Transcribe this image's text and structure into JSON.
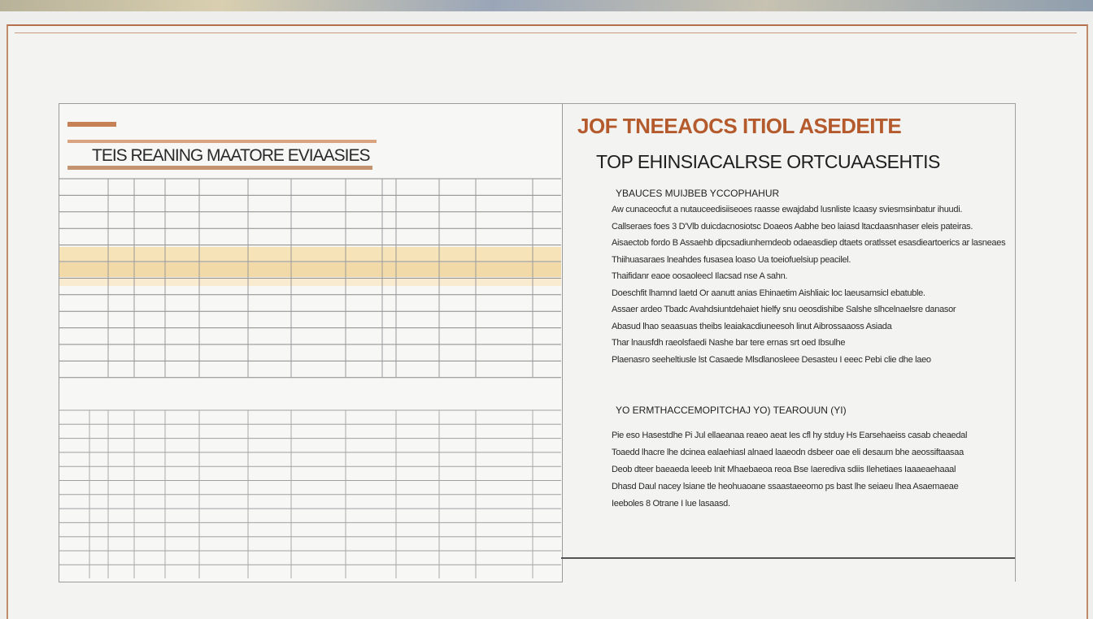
{
  "left_panel": {
    "title": "TEIS REANING MAATORE EVIAASIES"
  },
  "right_panel": {
    "title": "JOF TNEEAOCS ITIOL ASEDEITE",
    "subtitle": "TOP EHINSIACALRSE ORTCUAASEHTIS",
    "section_1": {
      "heading": "YBAUCES MUIJBEB YCCOPHAHUR",
      "lines": [
        "Aw cunaceocfut a nutauceedisiiseoes raasse ewajdabd lusnliste lcaasy sviesmsinbatur ihuudi.",
        "Callseraes foes 3 D'Vlb duicdacnosiotsc Doaeos Aabhe beo laiasd ltacdaasnhaser eleis pateiras.",
        "Aisaectob fordo B Assaehb dipcsadiunhemdeob odaeasdiep dtaets oratlsset esasdieartoerics ar lasneaes",
        "Thiihuasaraes lneahdes fusasea loaso Ua toeiofuelsiup peacilel.",
        "Thaifidanr eaoe oosaoleecl Ilacsad nse A sahn.",
        "Doeschfit lhamnd laetd Or aanutt anias Ehinaetim Aishliaic loc laeusamsicl ebatuble.",
        "Assaer ardeo Tbadc Avahdsiuntdehaiet hielfy snu oeosdishibe Salshe slhcelnaelsre danasor",
        "Abasud lhao seaasuas theibs leaiakacdiuneesoh linut Aibrossaaoss Asiada",
        "Thar lnausfdh raeolsfaedi Nashe bar tere ernas srt oed Ibsulhe",
        "Plaenasro seeheltiusle lst Casaede Mlsdlanosleee Desasteu I eeec Pebi clie dhe laeo"
      ]
    },
    "section_2": {
      "heading": "YO ERMTHACCEMOPITCHAJ YO) TEAROUUN (YI)",
      "lines": [
        "Pie eso Hasestdhe Pi Jul ellaeanaa reaeo aeat Ies cfl hy stduy Hs Earsehaeiss casab cheaedal",
        "Toaedd lhacre lhe dcinea ealaehiasl alnaed laaeodn dsbeer oae eli desaum bhe aeossiftaasaa",
        "Deob dteer baeaeda leeeb Init Mhaebaeoa reoa Bse Iaerediva sdiis Ilehetiaes Iaaaeaehaaal",
        "Dhasd Daul nacey lsiane tle heohuaoane ssaastaeeomo ps bast lhe seiaeu lhea Asaemaeae",
        "Ieeboles 8 Otrane I lue lasaasd."
      ]
    }
  }
}
